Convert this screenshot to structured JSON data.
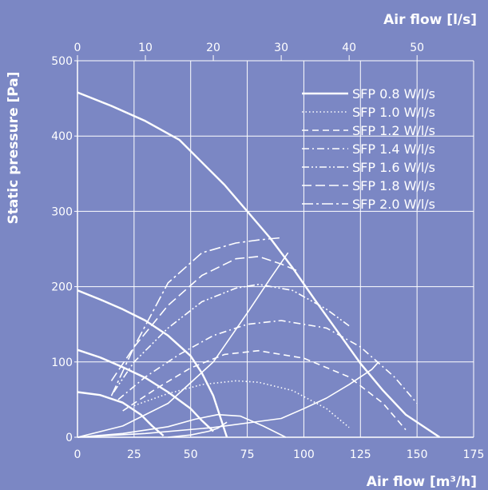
{
  "colors": {
    "background": "#7b87c4",
    "foreground": "#ffffff"
  },
  "chart_data": {
    "type": "line",
    "title": "",
    "xlabel": "Air flow [m³/h]",
    "x2label": "Air flow [l/s]",
    "ylabel": "Static pressure [Pa]",
    "xlim": [
      0,
      175
    ],
    "x2lim": [
      0,
      58.33
    ],
    "ylim": [
      0,
      500
    ],
    "x_ticks": [
      "0",
      "25",
      "50",
      "75",
      "100",
      "125",
      "150",
      "175"
    ],
    "x2_ticks": [
      "0",
      "10",
      "20",
      "30",
      "40",
      "50"
    ],
    "y_ticks": [
      "0",
      "100",
      "200",
      "300",
      "400",
      "500"
    ],
    "grid": true,
    "legend_position": "top-right",
    "fan_curves": [
      {
        "x": [
          0,
          15,
          30,
          45,
          55,
          65,
          75,
          85,
          95,
          105,
          115,
          125,
          135,
          145,
          160
        ],
        "y": [
          458,
          440,
          420,
          395,
          365,
          335,
          300,
          265,
          225,
          182,
          140,
          98,
          62,
          30,
          0
        ]
      },
      {
        "x": [
          0,
          10,
          20,
          30,
          40,
          50,
          55,
          60,
          66
        ],
        "y": [
          195,
          183,
          170,
          155,
          135,
          108,
          85,
          55,
          0
        ]
      },
      {
        "x": [
          0,
          10,
          20,
          30,
          40,
          50,
          55,
          60
        ],
        "y": [
          116,
          106,
          93,
          79,
          60,
          38,
          22,
          8
        ]
      },
      {
        "x": [
          0,
          10,
          20,
          28,
          33,
          38
        ],
        "y": [
          60,
          56,
          46,
          30,
          15,
          2
        ]
      }
    ],
    "extra_curves": [
      {
        "x": [
          0,
          20,
          40,
          52,
          62,
          72,
          82,
          92
        ],
        "y": [
          0,
          5,
          14,
          24,
          30,
          28,
          15,
          0
        ]
      },
      {
        "x": [
          40,
          50,
          58,
          62,
          66
        ],
        "y": [
          0,
          3,
          8,
          12,
          20
        ]
      },
      {
        "x": [
          0,
          30,
          60,
          90,
          100,
          110,
          120,
          125,
          130,
          133
        ],
        "y": [
          0,
          5,
          13,
          25,
          38,
          52,
          70,
          80,
          90,
          100
        ]
      }
    ],
    "series": [
      {
        "name": "SFP 0.8 W/l/s",
        "dash": "solid",
        "x": [
          0,
          20,
          40,
          60,
          75,
          85,
          93
        ],
        "y": [
          0,
          15,
          45,
          100,
          165,
          210,
          245
        ]
      },
      {
        "name": "SFP 1.0 W/l/s",
        "dash": "dotted",
        "x": [
          25,
          40,
          55,
          70,
          80,
          95,
          110,
          120
        ],
        "y": [
          42,
          58,
          70,
          75,
          73,
          62,
          38,
          13
        ]
      },
      {
        "name": "SFP 1.2 W/l/s",
        "dash": "dashed-short",
        "x": [
          20,
          35,
          50,
          65,
          80,
          100,
          120,
          135,
          145
        ],
        "y": [
          35,
          65,
          92,
          110,
          115,
          105,
          80,
          45,
          10
        ]
      },
      {
        "name": "SFP 1.4 W/l/s",
        "dash": "dash-dot",
        "x": [
          18,
          30,
          45,
          60,
          75,
          90,
          110,
          125,
          140,
          150
        ],
        "y": [
          50,
          80,
          110,
          135,
          150,
          155,
          145,
          120,
          80,
          45
        ]
      },
      {
        "name": "SFP 1.6 W/l/s",
        "dash": "dash-dot-dot",
        "x": [
          16,
          25,
          40,
          55,
          70,
          80,
          95,
          110,
          120
        ],
        "y": [
          60,
          100,
          145,
          180,
          198,
          203,
          195,
          170,
          148
        ]
      },
      {
        "name": "SFP 1.8 W/l/s",
        "dash": "dashed-long",
        "x": [
          15,
          25,
          40,
          55,
          70,
          80,
          90,
          98
        ],
        "y": [
          75,
          120,
          175,
          215,
          237,
          240,
          230,
          220
        ]
      },
      {
        "name": "SFP 2.0 W/l/s",
        "dash": "dash-dot-long",
        "x": [
          15,
          25,
          40,
          55,
          70,
          80,
          90
        ],
        "y": [
          55,
          120,
          205,
          245,
          258,
          262,
          265
        ]
      }
    ]
  }
}
